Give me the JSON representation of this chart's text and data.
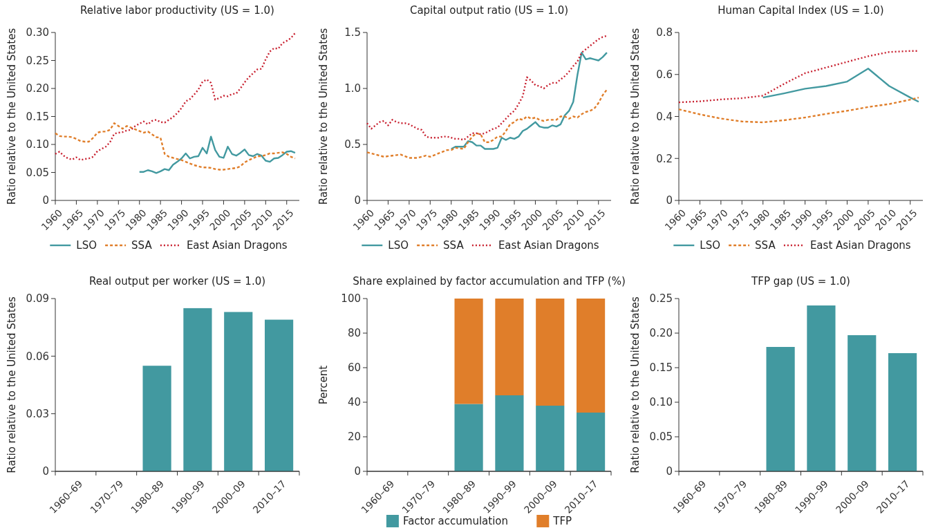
{
  "chart_data": [
    {
      "type": "line",
      "title": "Relative labor productivity (US = 1.0)",
      "ylabel": "Ratio relative to the United States",
      "xlim": [
        1960,
        2018
      ],
      "xticks": [
        1960,
        1965,
        1970,
        1975,
        1980,
        1985,
        1990,
        1995,
        2000,
        2005,
        2010,
        2015
      ],
      "ylim": [
        0,
        0.3
      ],
      "yticks": [
        0,
        0.05,
        {
          "value": 0.1,
          "label": "0.10"
        },
        0.15,
        {
          "value": 0.2,
          "label": "0.20"
        },
        0.25,
        {
          "value": 0.3,
          "label": "0.30"
        }
      ],
      "legend": "bottom",
      "grid": false,
      "series": [
        {
          "name": "LSO",
          "color": "#4299a0",
          "line_style": "solid",
          "x": [
            1980,
            1981,
            1982,
            1983,
            1984,
            1985,
            1986,
            1987,
            1988,
            1989,
            1990,
            1991,
            1992,
            1993,
            1994,
            1995,
            1996,
            1997,
            1998,
            1999,
            2000,
            2001,
            2002,
            2003,
            2004,
            2005,
            2006,
            2007,
            2008,
            2009,
            2010,
            2011,
            2012,
            2013,
            2014,
            2015,
            2016,
            2017
          ],
          "values": [
            0.051,
            0.051,
            0.054,
            0.052,
            0.049,
            0.052,
            0.056,
            0.054,
            0.064,
            0.069,
            0.075,
            0.084,
            0.075,
            0.078,
            0.079,
            0.094,
            0.084,
            0.114,
            0.09,
            0.078,
            0.076,
            0.096,
            0.083,
            0.08,
            0.085,
            0.091,
            0.081,
            0.079,
            0.083,
            0.08,
            0.071,
            0.069,
            0.075,
            0.076,
            0.081,
            0.087,
            0.088,
            0.085
          ]
        },
        {
          "name": "SSA",
          "color": "#e07e2a",
          "line_style": "dashed",
          "x": [
            1960,
            1961,
            1962,
            1963,
            1964,
            1965,
            1966,
            1967,
            1968,
            1969,
            1970,
            1971,
            1972,
            1973,
            1974,
            1975,
            1976,
            1977,
            1978,
            1979,
            1980,
            1981,
            1982,
            1983,
            1984,
            1985,
            1986,
            1987,
            1988,
            1989,
            1990,
            1991,
            1992,
            1993,
            1994,
            1995,
            1996,
            1997,
            1998,
            1999,
            2000,
            2001,
            2002,
            2003,
            2004,
            2005,
            2006,
            2007,
            2008,
            2009,
            2010,
            2011,
            2012,
            2013,
            2014,
            2015,
            2016,
            2017
          ],
          "values": [
            0.12,
            0.115,
            0.114,
            0.114,
            0.113,
            0.11,
            0.106,
            0.105,
            0.105,
            0.112,
            0.121,
            0.123,
            0.123,
            0.126,
            0.138,
            0.133,
            0.128,
            0.133,
            0.13,
            0.127,
            0.124,
            0.121,
            0.123,
            0.118,
            0.113,
            0.112,
            0.083,
            0.078,
            0.076,
            0.074,
            0.072,
            0.069,
            0.066,
            0.063,
            0.061,
            0.059,
            0.059,
            0.058,
            0.056,
            0.055,
            0.055,
            0.056,
            0.057,
            0.058,
            0.061,
            0.068,
            0.072,
            0.075,
            0.079,
            0.079,
            0.081,
            0.084,
            0.084,
            0.085,
            0.086,
            0.083,
            0.078,
            0.075
          ]
        },
        {
          "name": "East Asian Dragons",
          "color": "#c8202f",
          "line_style": "dotted",
          "x": [
            1960,
            1961,
            1962,
            1963,
            1964,
            1965,
            1966,
            1967,
            1968,
            1969,
            1970,
            1971,
            1972,
            1973,
            1974,
            1975,
            1976,
            1977,
            1978,
            1979,
            1980,
            1981,
            1982,
            1983,
            1984,
            1985,
            1986,
            1987,
            1988,
            1989,
            1990,
            1991,
            1992,
            1993,
            1994,
            1995,
            1996,
            1997,
            1998,
            1999,
            2000,
            2001,
            2002,
            2003,
            2004,
            2005,
            2006,
            2007,
            2008,
            2009,
            2010,
            2011,
            2012,
            2013,
            2014,
            2015,
            2016,
            2017
          ],
          "values": [
            0.083,
            0.087,
            0.08,
            0.075,
            0.073,
            0.077,
            0.072,
            0.074,
            0.075,
            0.078,
            0.088,
            0.092,
            0.096,
            0.104,
            0.119,
            0.121,
            0.122,
            0.125,
            0.126,
            0.133,
            0.137,
            0.141,
            0.136,
            0.142,
            0.144,
            0.14,
            0.139,
            0.144,
            0.149,
            0.156,
            0.165,
            0.177,
            0.181,
            0.189,
            0.198,
            0.212,
            0.216,
            0.21,
            0.18,
            0.183,
            0.187,
            0.186,
            0.19,
            0.191,
            0.2,
            0.211,
            0.22,
            0.227,
            0.234,
            0.235,
            0.252,
            0.266,
            0.272,
            0.271,
            0.281,
            0.285,
            0.29,
            0.299
          ]
        }
      ]
    },
    {
      "type": "line",
      "title": "Capital output ratio (US = 1.0)",
      "ylabel": "Ratio relative to the United States",
      "xlim": [
        1960,
        2018
      ],
      "xticks": [
        1960,
        1965,
        1970,
        1975,
        1980,
        1985,
        1990,
        1995,
        2000,
        2005,
        2010,
        2015
      ],
      "ylim": [
        0,
        1.5
      ],
      "yticks": [
        0,
        0.5,
        {
          "value": 1,
          "label": "1.0"
        },
        1.5
      ],
      "legend": "bottom",
      "grid": false,
      "series": [
        {
          "name": "LSO",
          "color": "#4299a0",
          "line_style": "solid",
          "x": [
            1980,
            1981,
            1982,
            1983,
            1984,
            1985,
            1986,
            1987,
            1988,
            1989,
            1990,
            1991,
            1992,
            1993,
            1994,
            1995,
            1996,
            1997,
            1998,
            1999,
            2000,
            2001,
            2002,
            2003,
            2004,
            2005,
            2006,
            2007,
            2008,
            2009,
            2010,
            2011,
            2012,
            2013,
            2014,
            2015,
            2016,
            2017
          ],
          "values": [
            0.46,
            0.48,
            0.48,
            0.48,
            0.53,
            0.52,
            0.49,
            0.49,
            0.46,
            0.46,
            0.46,
            0.47,
            0.56,
            0.54,
            0.56,
            0.55,
            0.57,
            0.62,
            0.64,
            0.67,
            0.7,
            0.66,
            0.65,
            0.65,
            0.67,
            0.66,
            0.68,
            0.76,
            0.8,
            0.88,
            1.12,
            1.32,
            1.26,
            1.27,
            1.26,
            1.25,
            1.28,
            1.32
          ]
        },
        {
          "name": "SSA",
          "color": "#e07e2a",
          "line_style": "dashed",
          "x": [
            1960,
            1962,
            1964,
            1966,
            1968,
            1970,
            1972,
            1974,
            1975,
            1977,
            1979,
            1980,
            1981,
            1983,
            1984,
            1985,
            1986,
            1987,
            1988,
            1989,
            1990,
            1991,
            1992,
            1993,
            1994,
            1995,
            1996,
            1997,
            1998,
            1999,
            2000,
            2001,
            2002,
            2003,
            2004,
            2005,
            2006,
            2007,
            2008,
            2009,
            2010,
            2011,
            2012,
            2013,
            2014,
            2015,
            2016,
            2017
          ],
          "values": [
            0.43,
            0.41,
            0.39,
            0.4,
            0.41,
            0.38,
            0.38,
            0.4,
            0.39,
            0.42,
            0.45,
            0.45,
            0.47,
            0.46,
            0.52,
            0.57,
            0.6,
            0.59,
            0.52,
            0.52,
            0.54,
            0.57,
            0.57,
            0.62,
            0.68,
            0.7,
            0.73,
            0.72,
            0.75,
            0.73,
            0.74,
            0.72,
            0.71,
            0.72,
            0.72,
            0.72,
            0.75,
            0.75,
            0.73,
            0.75,
            0.74,
            0.77,
            0.79,
            0.8,
            0.82,
            0.87,
            0.94,
            0.99
          ]
        },
        {
          "name": "East Asian Dragons",
          "color": "#c8202f",
          "line_style": "dotted",
          "x": [
            1960,
            1961,
            1962,
            1963,
            1964,
            1965,
            1966,
            1967,
            1968,
            1969,
            1970,
            1971,
            1972,
            1973,
            1974,
            1975,
            1976,
            1977,
            1978,
            1979,
            1980,
            1981,
            1982,
            1983,
            1984,
            1985,
            1986,
            1987,
            1988,
            1989,
            1990,
            1991,
            1992,
            1993,
            1994,
            1995,
            1996,
            1997,
            1998,
            1999,
            2000,
            2001,
            2002,
            2003,
            2004,
            2005,
            2006,
            2007,
            2008,
            2009,
            2010,
            2011,
            2012,
            2013,
            2014,
            2015,
            2016,
            2017
          ],
          "values": [
            0.69,
            0.64,
            0.67,
            0.7,
            0.71,
            0.67,
            0.72,
            0.7,
            0.69,
            0.69,
            0.68,
            0.66,
            0.64,
            0.63,
            0.57,
            0.56,
            0.56,
            0.56,
            0.57,
            0.57,
            0.56,
            0.55,
            0.55,
            0.54,
            0.57,
            0.6,
            0.6,
            0.59,
            0.6,
            0.62,
            0.64,
            0.65,
            0.69,
            0.73,
            0.77,
            0.8,
            0.86,
            0.93,
            1.1,
            1.07,
            1.03,
            1.02,
            1.0,
            1.03,
            1.05,
            1.05,
            1.08,
            1.11,
            1.15,
            1.2,
            1.24,
            1.32,
            1.35,
            1.38,
            1.41,
            1.44,
            1.46,
            1.47
          ]
        }
      ]
    },
    {
      "type": "line",
      "title": "Human Capital Index (US = 1.0)",
      "ylabel": "Ratio relative to the United States",
      "xlim": [
        1960,
        2018
      ],
      "xticks": [
        1960,
        1965,
        1970,
        1975,
        1980,
        1985,
        1990,
        1995,
        2000,
        2005,
        2010,
        2015
      ],
      "ylim": [
        0,
        0.8
      ],
      "yticks": [
        0,
        0.2,
        0.4,
        0.6,
        0.8
      ],
      "legend": "bottom",
      "grid": false,
      "series": [
        {
          "name": "LSO",
          "color": "#4299a0",
          "line_style": "solid",
          "x": [
            1980,
            1985,
            1990,
            1995,
            2000,
            2005,
            2010,
            2015,
            2017
          ],
          "values": [
            0.49,
            0.51,
            0.532,
            0.545,
            0.566,
            0.628,
            0.545,
            0.49,
            0.47
          ]
        },
        {
          "name": "SSA",
          "color": "#e07e2a",
          "line_style": "dashed",
          "x": [
            1960,
            1965,
            1970,
            1975,
            1980,
            1985,
            1990,
            1995,
            2000,
            2005,
            2010,
            2015,
            2017
          ],
          "values": [
            0.434,
            0.41,
            0.39,
            0.376,
            0.372,
            0.382,
            0.395,
            0.412,
            0.427,
            0.445,
            0.459,
            0.48,
            0.49
          ]
        },
        {
          "name": "East Asian Dragons",
          "color": "#c8202f",
          "line_style": "dotted",
          "x": [
            1960,
            1965,
            1970,
            1975,
            1980,
            1985,
            1990,
            1995,
            2000,
            2005,
            2010,
            2015,
            2017
          ],
          "values": [
            0.467,
            0.472,
            0.481,
            0.487,
            0.499,
            0.555,
            0.606,
            0.633,
            0.66,
            0.687,
            0.707,
            0.712,
            0.712
          ]
        }
      ]
    },
    {
      "type": "bar",
      "title": "Real output per worker (US = 1.0)",
      "ylabel": "Ratio relative to the United States",
      "categories": [
        "1960–69",
        "1970–79",
        "1980–89",
        "1990–99",
        "2000–09",
        "2010–17"
      ],
      "ylim": [
        0,
        0.09
      ],
      "yticks": [
        0,
        0.03,
        0.06,
        0.09
      ],
      "grid": false,
      "legend": false,
      "series": [
        {
          "color": "#4299a0",
          "values": [
            null,
            null,
            0.055,
            0.085,
            0.083,
            0.079
          ]
        }
      ]
    },
    {
      "type": "bar",
      "title": "Share explained by factor accumulation and TFP (%)",
      "ylabel": "Percent",
      "categories": [
        "1960–69",
        "1970–79",
        "1980–89",
        "1990–99",
        "2000–09",
        "2010–17"
      ],
      "ylim": [
        0,
        100
      ],
      "yticks": [
        0,
        20,
        40,
        60,
        80,
        100
      ],
      "stacked": true,
      "grid": false,
      "legend": "bottom",
      "series": [
        {
          "name": "Factor accumulation",
          "color": "#4299a0",
          "values": [
            null,
            null,
            39,
            44,
            38,
            34
          ]
        },
        {
          "name": "TFP",
          "color": "#e07e2a",
          "values": [
            null,
            null,
            61,
            56,
            62,
            66
          ]
        }
      ]
    },
    {
      "type": "bar",
      "title": "TFP gap (US = 1.0)",
      "ylabel": "Ratio relative to the United States",
      "categories": [
        "1960–69",
        "1970–79",
        "1980–89",
        "1990–99",
        "2000–09",
        "2010–17"
      ],
      "ylim": [
        0,
        0.25
      ],
      "yticks": [
        0,
        0.05,
        {
          "value": 0.1,
          "label": "0.10"
        },
        0.15,
        {
          "value": 0.2,
          "label": "0.20"
        },
        0.25
      ],
      "grid": false,
      "legend": false,
      "series": [
        {
          "color": "#4299a0",
          "values": [
            null,
            null,
            0.18,
            0.24,
            0.197,
            0.171
          ]
        }
      ]
    }
  ]
}
